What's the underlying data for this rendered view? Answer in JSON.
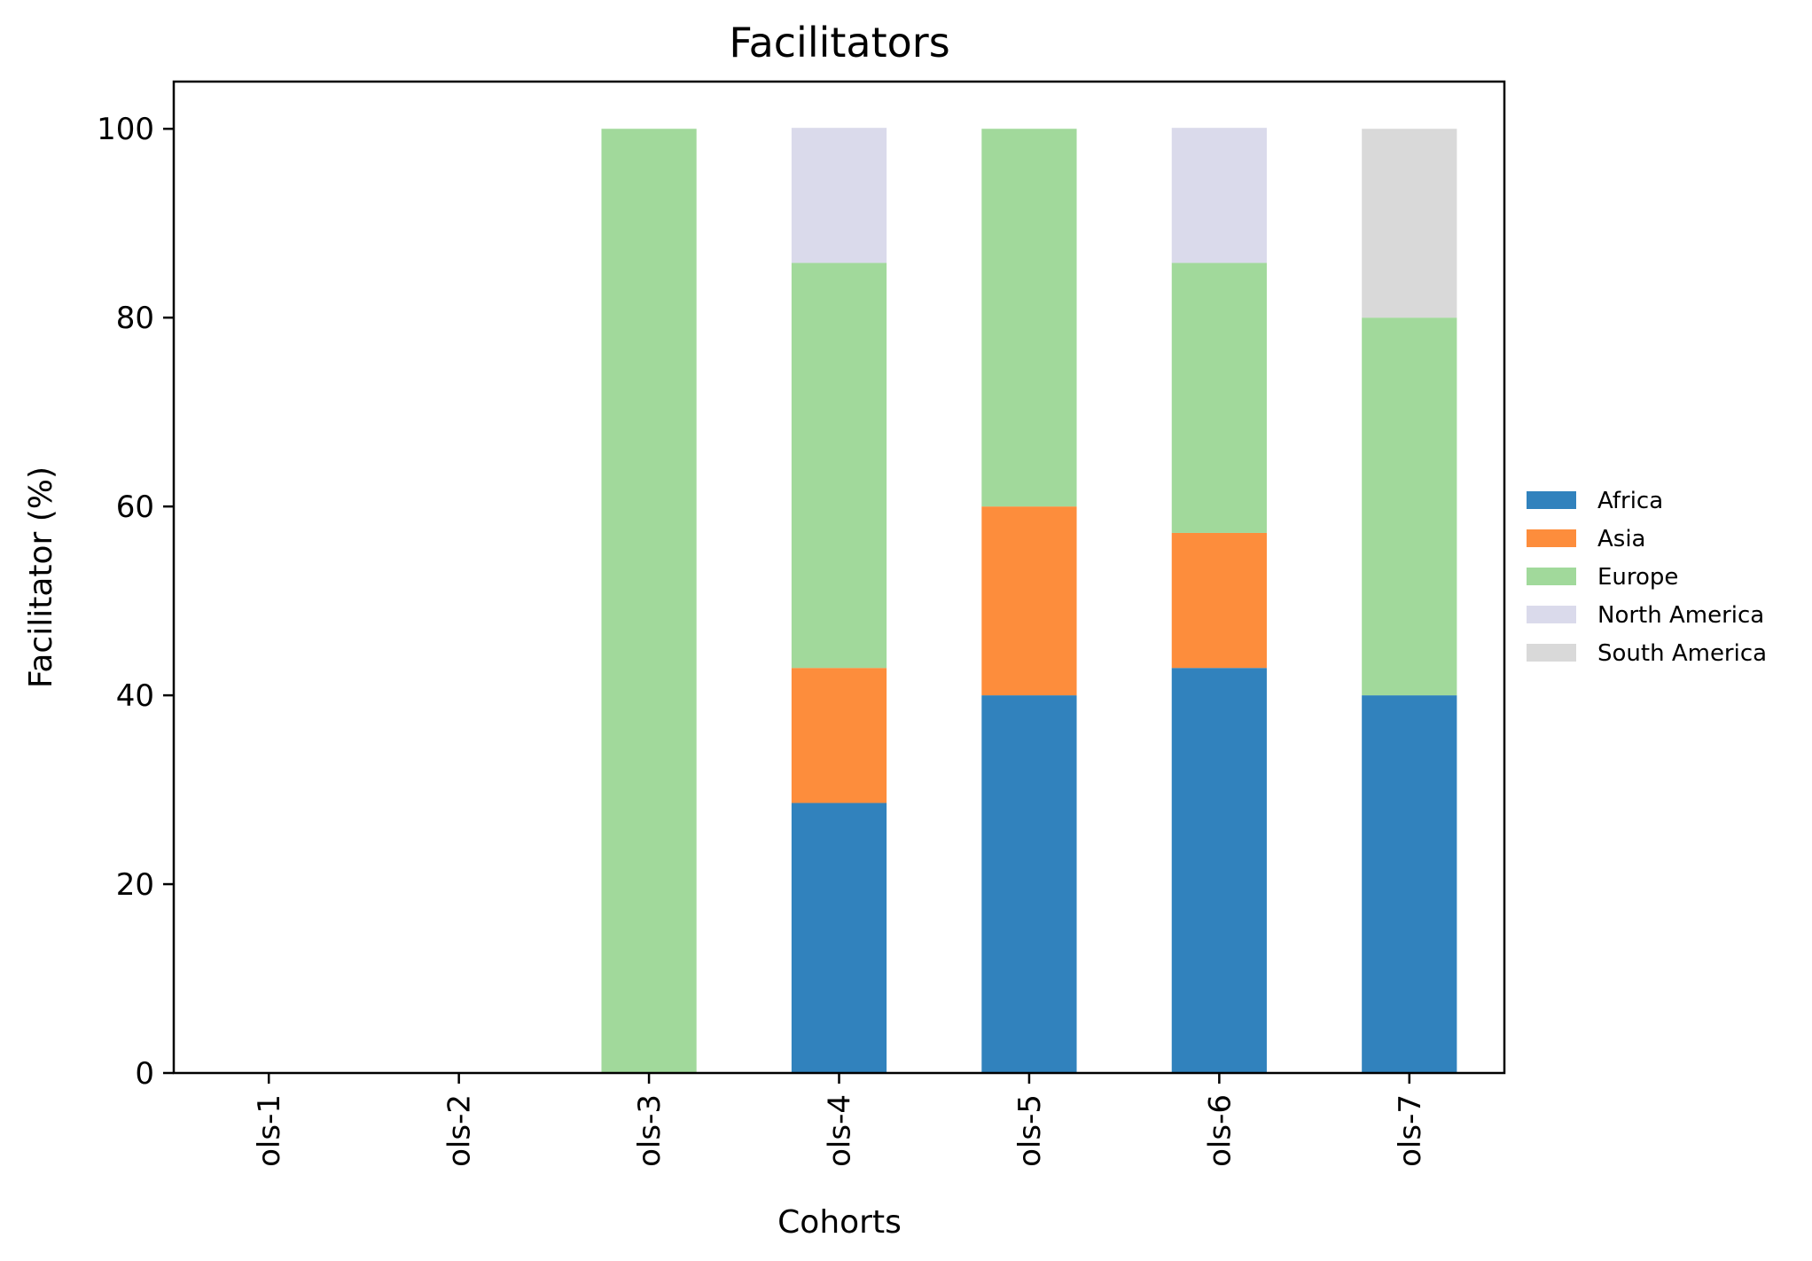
{
  "chart_data": {
    "type": "bar",
    "stacked": true,
    "title": "Facilitators",
    "xlabel": "Cohorts",
    "ylabel": "Facilitator (%)",
    "ylim": [
      0,
      105
    ],
    "yticks": [
      0,
      20,
      40,
      60,
      80,
      100
    ],
    "grid": false,
    "legend_position": "right",
    "categories": [
      "ols-1",
      "ols-2",
      "ols-3",
      "ols-4",
      "ols-5",
      "ols-6",
      "ols-7"
    ],
    "series": [
      {
        "name": "Africa",
        "color": "#3182bd",
        "values": [
          0,
          0,
          0,
          28.6,
          40,
          42.9,
          40
        ]
      },
      {
        "name": "Asia",
        "color": "#fd8d3c",
        "values": [
          0,
          0,
          0,
          14.3,
          20,
          14.3,
          0
        ]
      },
      {
        "name": "Europe",
        "color": "#a1d99b",
        "values": [
          0,
          0,
          100,
          42.9,
          40,
          28.6,
          40
        ]
      },
      {
        "name": "North America",
        "color": "#dadaeb",
        "values": [
          0,
          0,
          0,
          14.3,
          0,
          14.3,
          0
        ]
      },
      {
        "name": "South America",
        "color": "#d9d9d9",
        "values": [
          0,
          0,
          0,
          0,
          0,
          0,
          20
        ]
      }
    ]
  }
}
